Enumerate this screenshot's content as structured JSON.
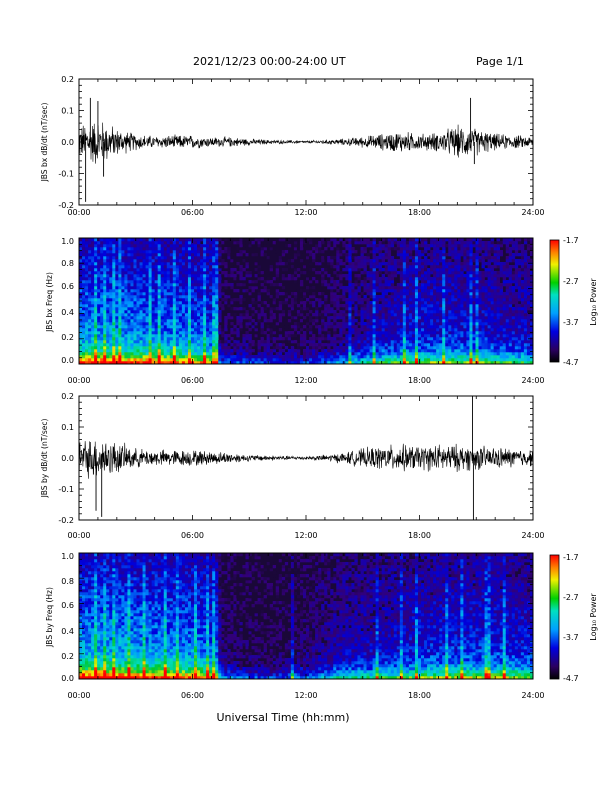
{
  "header": {
    "date_range": "2021/12/23  00:00-24:00 UT",
    "page": "Page 1/1"
  },
  "footer": {
    "xlabel": "Universal Time (hh:mm)"
  },
  "chart_data": [
    {
      "type": "line",
      "ylabel": "JBS bx dB/dt (nT/sec)",
      "xlim": [
        0,
        24
      ],
      "ylim": [
        -0.2,
        0.2
      ],
      "x_tick_labels": [
        "00:00",
        "06:00",
        "12:00",
        "18:00",
        "24:00"
      ],
      "y_tick_labels": [
        "0.2",
        "0.1",
        "0.0",
        "-0.1",
        "-0.2"
      ],
      "series": [
        {
          "color": "#000000",
          "envelope_hours": [
            0,
            1,
            2,
            3,
            4,
            5,
            6,
            7,
            8,
            9,
            10,
            11,
            12,
            13,
            14,
            15,
            16,
            17,
            18,
            19,
            20,
            21,
            22,
            23,
            24
          ],
          "envelope_amplitude": [
            0.06,
            0.09,
            0.05,
            0.03,
            0.022,
            0.025,
            0.025,
            0.018,
            0.018,
            0.012,
            0.008,
            0.006,
            0.005,
            0.008,
            0.012,
            0.02,
            0.03,
            0.04,
            0.03,
            0.035,
            0.06,
            0.05,
            0.03,
            0.025,
            0.02
          ],
          "spikes": [
            {
              "t": 0.35,
              "v": -0.19
            },
            {
              "t": 0.6,
              "v": 0.14
            },
            {
              "t": 1.0,
              "v": 0.13
            },
            {
              "t": 1.3,
              "v": -0.11
            },
            {
              "t": 20.7,
              "v": 0.14
            },
            {
              "t": 20.9,
              "v": -0.07
            }
          ]
        }
      ]
    },
    {
      "type": "heatmap",
      "ylabel": "JBS bx Freq (Hz)",
      "xlim": [
        0,
        24
      ],
      "ylim": [
        0.0,
        1.0
      ],
      "x_tick_labels": [
        "00:00",
        "06:00",
        "12:00",
        "18:00",
        "24:00"
      ],
      "y_tick_labels": [
        "1.0",
        "0.8",
        "0.6",
        "0.4",
        "0.2",
        "0.0"
      ],
      "colorbar": {
        "label": "Log₁₀ Power",
        "range": [
          -4.7,
          -1.7
        ],
        "tick_labels": [
          "-1.7",
          "-2.7",
          "-3.7",
          "-4.7"
        ],
        "colormap": "rainbow"
      },
      "activity_profile_hours": [
        0,
        2,
        4,
        6,
        7.3,
        7.5,
        9,
        10,
        11,
        12,
        14,
        15,
        16,
        18,
        20,
        22,
        24
      ],
      "activity_profile_level": [
        0.85,
        0.85,
        0.8,
        0.75,
        0.65,
        0.15,
        0.15,
        0.1,
        0.1,
        0.1,
        0.25,
        0.35,
        0.45,
        0.55,
        0.55,
        0.5,
        0.45
      ],
      "bright_streak_hours": [
        0.9,
        1.3,
        1.8,
        2.2,
        3.7,
        4.3,
        5.1,
        5.8,
        6.7,
        7.2,
        14.3,
        15.6,
        17.2,
        17.8,
        19.3,
        20.7,
        21.0
      ]
    },
    {
      "type": "line",
      "ylabel": "JBS by dB/dt (nT/sec)",
      "xlim": [
        0,
        24
      ],
      "ylim": [
        -0.2,
        0.2
      ],
      "x_tick_labels": [
        "00:00",
        "06:00",
        "12:00",
        "18:00",
        "24:00"
      ],
      "y_tick_labels": [
        "0.2",
        "0.1",
        "0.0",
        "-0.1",
        "-0.2"
      ],
      "series": [
        {
          "color": "#000000",
          "envelope_hours": [
            0,
            1,
            2,
            3,
            4,
            5,
            6,
            7,
            8,
            9,
            10,
            11,
            12,
            13,
            14,
            15,
            16,
            17,
            18,
            19,
            20,
            21,
            22,
            23,
            24
          ],
          "envelope_amplitude": [
            0.065,
            0.08,
            0.06,
            0.035,
            0.03,
            0.03,
            0.03,
            0.025,
            0.02,
            0.012,
            0.01,
            0.008,
            0.006,
            0.012,
            0.02,
            0.035,
            0.045,
            0.05,
            0.045,
            0.05,
            0.05,
            0.045,
            0.04,
            0.035,
            0.03
          ],
          "spikes": [
            {
              "t": 1.2,
              "v": -0.19
            },
            {
              "t": 0.9,
              "v": -0.17
            },
            {
              "t": 20.8,
              "v": 0.2
            },
            {
              "t": 20.85,
              "v": -0.2
            }
          ]
        }
      ]
    },
    {
      "type": "heatmap",
      "ylabel": "JBS by Freq (Hz)",
      "xlim": [
        0,
        24
      ],
      "ylim": [
        0.0,
        1.0
      ],
      "x_tick_labels": [
        "00:00",
        "06:00",
        "12:00",
        "18:00",
        "24:00"
      ],
      "y_tick_labels": [
        "1.0",
        "0.8",
        "0.6",
        "0.4",
        "0.2",
        "0.0"
      ],
      "colorbar": {
        "label": "Log₁₀ Power",
        "range": [
          -4.7,
          -1.7
        ],
        "tick_labels": [
          "-1.7",
          "-2.7",
          "-3.7",
          "-4.7"
        ],
        "colormap": "rainbow"
      },
      "activity_profile_hours": [
        0,
        2,
        4,
        6,
        7.3,
        7.5,
        9,
        10,
        11,
        12,
        13,
        14,
        16,
        18,
        20,
        22,
        24
      ],
      "activity_profile_level": [
        0.9,
        0.9,
        0.85,
        0.8,
        0.7,
        0.2,
        0.15,
        0.1,
        0.15,
        0.2,
        0.3,
        0.4,
        0.45,
        0.55,
        0.6,
        0.6,
        0.55
      ],
      "bright_streak_hours": [
        0.9,
        1.3,
        1.9,
        2.6,
        3.4,
        4.6,
        5.2,
        6.1,
        6.8,
        7.1,
        11.3,
        15.8,
        17.0,
        17.9,
        19.4,
        20.2,
        21.6,
        22.5
      ]
    }
  ]
}
